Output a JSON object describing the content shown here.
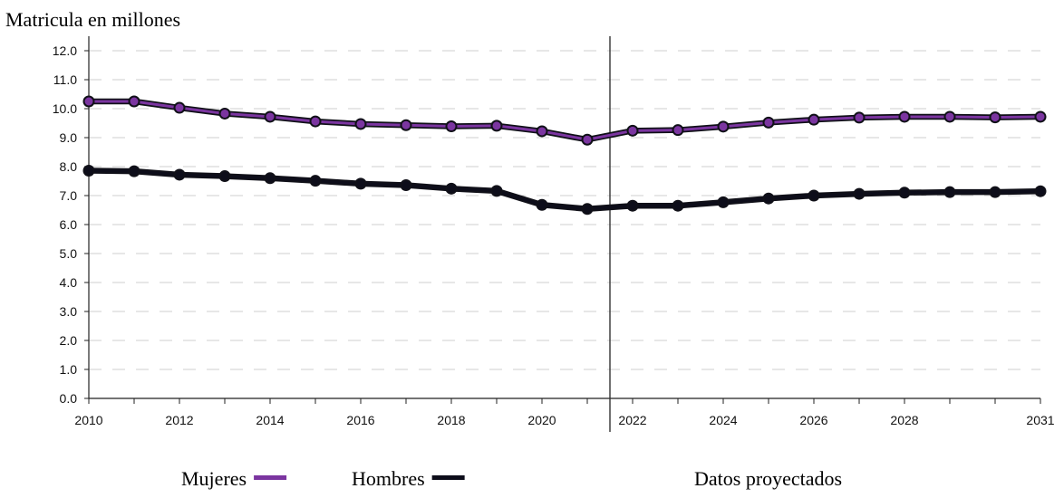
{
  "chart_data": {
    "type": "line",
    "title": "",
    "ylabel": "Matricula en millones",
    "xlabel": "",
    "x": [
      2010,
      2011,
      2012,
      2013,
      2014,
      2015,
      2016,
      2017,
      2018,
      2019,
      2020,
      2021,
      2022,
      2023,
      2024,
      2025,
      2026,
      2027,
      2028,
      2029,
      2030,
      2031
    ],
    "x_tick_labels": [
      "2010",
      "2012",
      "2014",
      "2016",
      "2018",
      "2020",
      "2022",
      "2024",
      "2026",
      "2028",
      "2031"
    ],
    "y_tick_labels": [
      "0.0",
      "1.0",
      "2.0",
      "3.0",
      "4.0",
      "5.0",
      "6.0",
      "7.0",
      "8.0",
      "9.0",
      "10.0",
      "11.0",
      "12.0"
    ],
    "ylim": [
      0,
      12
    ],
    "xlim": [
      2010,
      2031
    ],
    "grid": "horizontal dashed",
    "series": [
      {
        "name": "Mujeres",
        "color": "#7b35a0",
        "values": [
          10.25,
          10.25,
          10.03,
          9.83,
          9.72,
          9.56,
          9.47,
          9.43,
          9.39,
          9.41,
          9.22,
          8.93,
          9.24,
          9.26,
          9.38,
          9.52,
          9.62,
          9.69,
          9.72,
          9.72,
          9.7,
          9.72
        ]
      },
      {
        "name": "Hombres",
        "color": "#0d0d1a",
        "values": [
          7.86,
          7.84,
          7.72,
          7.67,
          7.6,
          7.51,
          7.41,
          7.36,
          7.24,
          7.16,
          6.68,
          6.54,
          6.65,
          6.65,
          6.77,
          6.9,
          7.0,
          7.06,
          7.1,
          7.12,
          7.12,
          7.15
        ]
      }
    ],
    "projection_start": 2021.5,
    "projection_label": "Datos proyectados",
    "legend_placement": "bottom"
  }
}
